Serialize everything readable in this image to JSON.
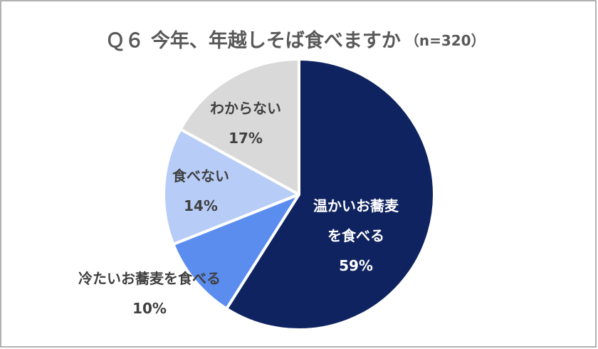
{
  "chart_data": {
    "type": "pie",
    "title": "Ｑ６ 今年、年越しそば食べますか",
    "subtitle": "（n=320）",
    "categories": [
      "温かいお蕎麦を食べる",
      "冷たいお蕎麦を食べる",
      "食べない",
      "わからない"
    ],
    "values": [
      59,
      10,
      14,
      17
    ],
    "value_labels": [
      "59%",
      "10%",
      "14%",
      "17%"
    ],
    "colors": [
      "#0f2360",
      "#5b8def",
      "#b7cdf7",
      "#d9d9d9"
    ]
  }
}
